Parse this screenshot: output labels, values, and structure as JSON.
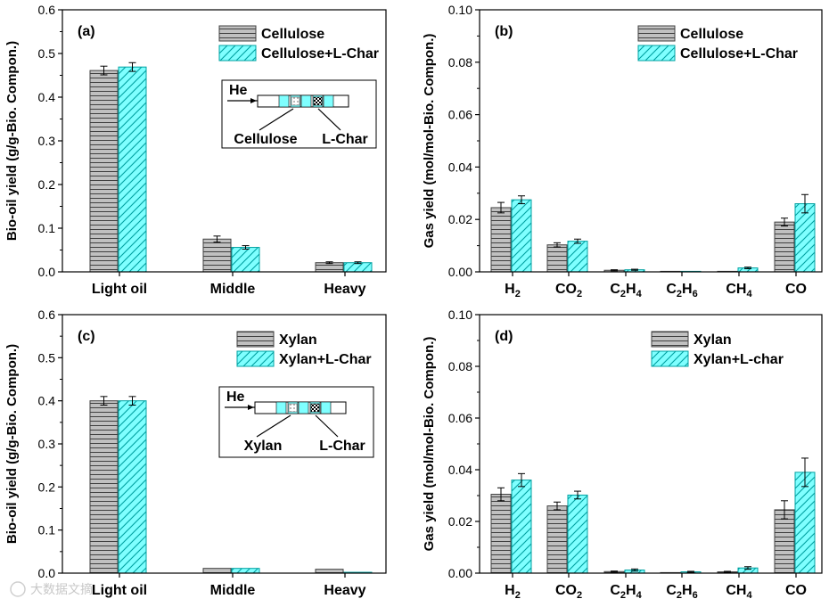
{
  "colors": {
    "s0_fill": "#c0c0c0",
    "s0_line": "#404040",
    "s1_fill": "#7fffff",
    "s1_line": "#00a0a0",
    "axis": "#000000"
  },
  "watermark": "大数据文摘",
  "chart_data": [
    {
      "id": "a",
      "type": "bar",
      "panel_label": "(a)",
      "ylabel": "Bio-oil yield (g/g-Bio. Compon.)",
      "xlabel": "",
      "ylim": [
        0,
        0.6
      ],
      "yticks": [
        0.0,
        0.1,
        0.2,
        0.3,
        0.4,
        0.5,
        0.6
      ],
      "ytick_labels": [
        "0.0",
        "0.1",
        "0.2",
        "0.3",
        "0.4",
        "0.5",
        "0.6"
      ],
      "categories": [
        "Light oil",
        "Middle",
        "Heavy"
      ],
      "series": [
        {
          "name": "Cellulose",
          "values": [
            0.461,
            0.075,
            0.021
          ],
          "errors": [
            0.01,
            0.007,
            0.002
          ]
        },
        {
          "name": "Cellulose+L-Char",
          "values": [
            0.469,
            0.056,
            0.021
          ],
          "errors": [
            0.01,
            0.004,
            0.002
          ]
        }
      ],
      "legend": "top-right",
      "inset": {
        "gas": "He",
        "left": "Cellulose",
        "right": "L-Char"
      }
    },
    {
      "id": "b",
      "type": "bar",
      "panel_label": "(b)",
      "ylabel": "Gas yield (mol/mol-Bio. Compon.)",
      "xlabel": "",
      "ylim": [
        0,
        0.1
      ],
      "yticks": [
        0.0,
        0.02,
        0.04,
        0.06,
        0.08,
        0.1
      ],
      "ytick_labels": [
        "0.00",
        "0.02",
        "0.04",
        "0.06",
        "0.08",
        "0.10"
      ],
      "categories": [
        {
          "base": "H",
          "sub": "2"
        },
        {
          "base": "CO",
          "sub": "2"
        },
        {
          "base": "C",
          "sub": "2",
          "base2": "H",
          "sub2": "4"
        },
        {
          "base": "C",
          "sub": "2",
          "base2": "H",
          "sub2": "6"
        },
        {
          "base": "CH",
          "sub": "4"
        },
        {
          "base": "CO"
        }
      ],
      "series": [
        {
          "name": "Cellulose",
          "values": [
            0.0245,
            0.0103,
            0.0006,
            0.0001,
            0.0002,
            0.019
          ],
          "errors": [
            0.002,
            0.0008,
            0.0002,
            0.0001,
            0.0001,
            0.0015
          ]
        },
        {
          "name": "Cellulose+L-Char",
          "values": [
            0.0275,
            0.0117,
            0.0008,
            0.0002,
            0.0015,
            0.026
          ],
          "errors": [
            0.0015,
            0.0008,
            0.0002,
            0.0001,
            0.0003,
            0.0035
          ]
        }
      ],
      "legend": "top-right"
    },
    {
      "id": "c",
      "type": "bar",
      "panel_label": "(c)",
      "ylabel": "Bio-oil yield (g/g-Bio. Compon.)",
      "xlabel": "",
      "ylim": [
        0,
        0.6
      ],
      "yticks": [
        0.0,
        0.1,
        0.2,
        0.3,
        0.4,
        0.5,
        0.6
      ],
      "ytick_labels": [
        "0.0",
        "0.1",
        "0.2",
        "0.3",
        "0.4",
        "0.5",
        "0.6"
      ],
      "categories": [
        "Light oil",
        "Middle",
        "Heavy"
      ],
      "series": [
        {
          "name": "Xylan",
          "values": [
            0.4,
            0.011,
            0.009
          ],
          "errors": [
            0.01,
            0.001,
            0.001
          ]
        },
        {
          "name": "Xylan+L-Char",
          "values": [
            0.4,
            0.011,
            0.002
          ],
          "errors": [
            0.01,
            0.001,
            0.0005
          ]
        }
      ],
      "legend": "top-right",
      "inset": {
        "gas": "He",
        "left": "Xylan",
        "right": "L-Char"
      }
    },
    {
      "id": "d",
      "type": "bar",
      "panel_label": "(d)",
      "ylabel": "Gas yield (mol/mol-Bio. Compon.)",
      "xlabel": "",
      "ylim": [
        0,
        0.1
      ],
      "yticks": [
        0.0,
        0.02,
        0.04,
        0.06,
        0.08,
        0.1
      ],
      "ytick_labels": [
        "0.00",
        "0.02",
        "0.04",
        "0.06",
        "0.08",
        "0.10"
      ],
      "categories": [
        {
          "base": "H",
          "sub": "2"
        },
        {
          "base": "CO",
          "sub": "2"
        },
        {
          "base": "C",
          "sub": "2",
          "base2": "H",
          "sub2": "4"
        },
        {
          "base": "C",
          "sub": "2",
          "base2": "H",
          "sub2": "6"
        },
        {
          "base": "CH",
          "sub": "4"
        },
        {
          "base": "CO"
        }
      ],
      "series": [
        {
          "name": "Xylan",
          "values": [
            0.0305,
            0.026,
            0.0006,
            0.0002,
            0.0005,
            0.0245
          ],
          "errors": [
            0.0025,
            0.0015,
            0.0002,
            0.0001,
            0.0002,
            0.0035
          ]
        },
        {
          "name": "Xylan+L-char",
          "values": [
            0.036,
            0.0302,
            0.0012,
            0.0005,
            0.002,
            0.039
          ],
          "errors": [
            0.0025,
            0.0015,
            0.0004,
            0.0002,
            0.0005,
            0.0055
          ]
        }
      ],
      "legend": "top-right"
    }
  ]
}
